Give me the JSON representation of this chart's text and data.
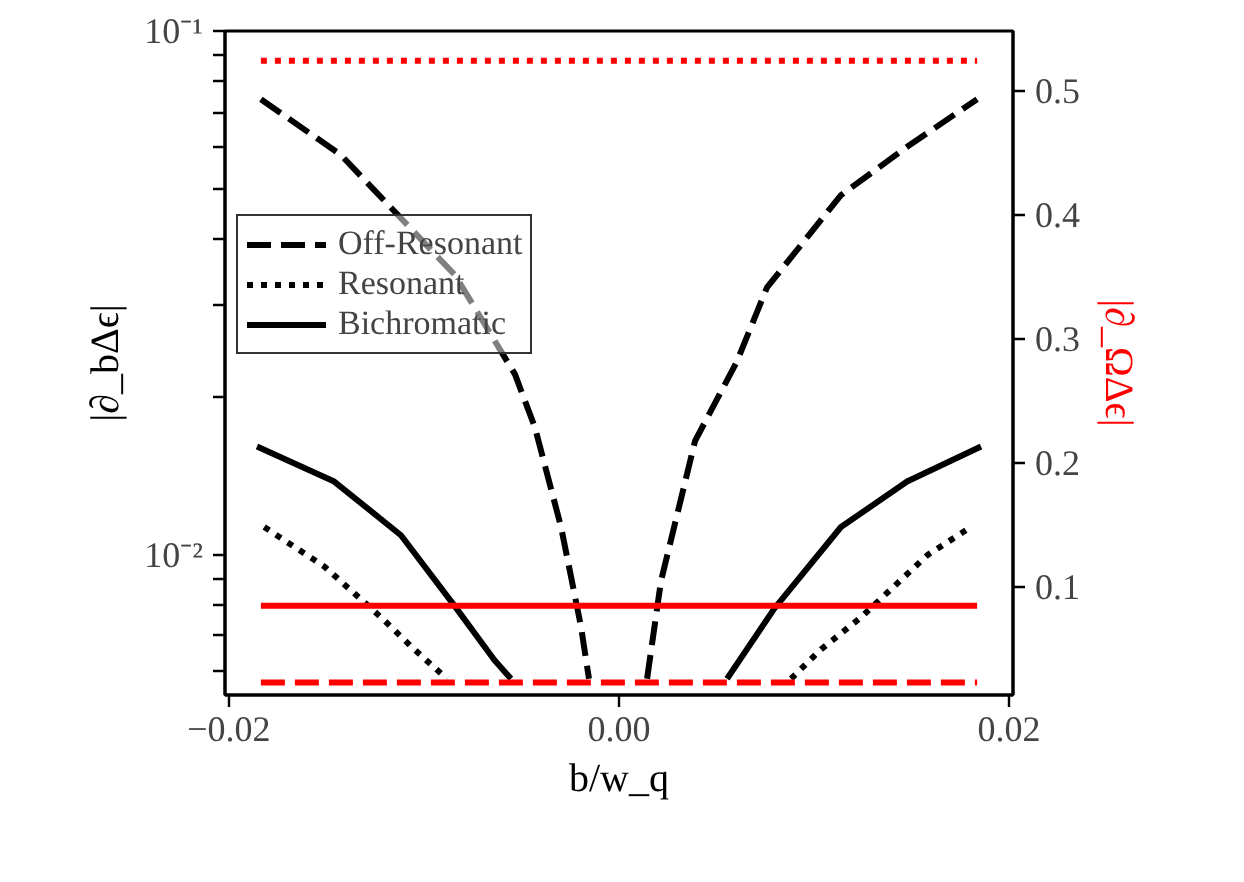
{
  "chart_data": {
    "type": "line",
    "xlabel": "b/w_q",
    "ylabel": "|∂_bΔϵ|",
    "y2label": "|∂_ΩΔϵ|",
    "log": "y",
    "grid": false,
    "legend": "top left",
    "xlim": [
      -0.0202,
      0.0202
    ],
    "xticks": [
      {
        "value": -0.02,
        "label": "−0.02"
      },
      {
        "value": 0.0,
        "label": "0.00"
      },
      {
        "value": 0.02,
        "label": "0.02"
      }
    ],
    "ylim": [
      0.0054,
      0.1
    ],
    "yticks": [
      {
        "value": 0.006,
        "label": null
      },
      {
        "value": 0.007,
        "label": null
      },
      {
        "value": 0.008,
        "label": null
      },
      {
        "value": 0.009,
        "label": null
      },
      {
        "value": 0.01,
        "label": "10⁻²"
      },
      {
        "value": 0.02,
        "label": null
      },
      {
        "value": 0.03,
        "label": null
      },
      {
        "value": 0.04,
        "label": null
      },
      {
        "value": 0.05,
        "label": null
      },
      {
        "value": 0.06,
        "label": null
      },
      {
        "value": 0.07,
        "label": null
      },
      {
        "value": 0.08,
        "label": null
      },
      {
        "value": 0.09,
        "label": null
      },
      {
        "value": 0.1,
        "label": "10⁻¹"
      }
    ],
    "y2lim": [
      0.013,
      0.548
    ],
    "y2ticks": [
      0.1,
      0.2,
      0.3,
      0.4,
      0.5
    ],
    "series": [
      {
        "name": "Off-Resonant",
        "color": "#000000",
        "line_style": "dashed",
        "x": [
          -0.01836,
          -0.01426,
          -0.00841,
          -0.00533,
          -0.00431,
          -0.00297,
          -0.00195,
          -0.00154,
          0.0,
          0.00144,
          0.00215,
          0.0039,
          0.00605,
          0.00759,
          0.01138,
          0.01477,
          0.01836
        ],
        "values": [
          0.0741,
          0.058,
          0.0342,
          0.0221,
          0.0175,
          0.0113,
          0.0073,
          0.0058,
          null,
          0.0058,
          0.0089,
          0.0165,
          0.0234,
          0.0324,
          0.0486,
          0.0601,
          0.0741
        ]
      },
      {
        "name": "Resonant",
        "color": "#000000",
        "line_style": "dotted",
        "x": [
          -0.01819,
          -0.01511,
          -0.0122,
          -0.0105,
          -0.00882,
          0.0,
          0.00882,
          0.01036,
          0.01241,
          0.01583,
          0.01805
        ],
        "values": [
          0.0113,
          0.0095,
          0.0076,
          0.0066,
          0.0058,
          null,
          0.0058,
          0.0066,
          0.0076,
          0.01,
          0.0113
        ]
      },
      {
        "name": "Bichromatic",
        "color": "#000000",
        "line_style": "solid",
        "x": [
          -0.01856,
          -0.0146,
          -0.01118,
          -0.00844,
          -0.00639,
          -0.00554,
          0.0,
          0.00554,
          0.00797,
          0.01138,
          0.01477,
          0.01856
        ],
        "values": [
          0.0161,
          0.0138,
          0.0109,
          0.008,
          0.0063,
          0.0058,
          null,
          0.0058,
          0.0079,
          0.0113,
          0.0138,
          0.0161
        ]
      },
      {
        "color": "#ff0000",
        "line_style": "dotted",
        "axis": "y2",
        "x": [
          -0.01836,
          0.01836
        ],
        "values": [
          0.524,
          0.524
        ]
      },
      {
        "color": "#ff0000",
        "line_style": "solid",
        "axis": "y2",
        "x": [
          -0.01836,
          0.01836
        ],
        "values": [
          0.085,
          0.085
        ]
      },
      {
        "color": "#ff0000",
        "line_style": "dashed",
        "axis": "y2",
        "x": [
          -0.01836,
          0.01836
        ],
        "values": [
          0.023,
          0.023
        ]
      }
    ]
  }
}
